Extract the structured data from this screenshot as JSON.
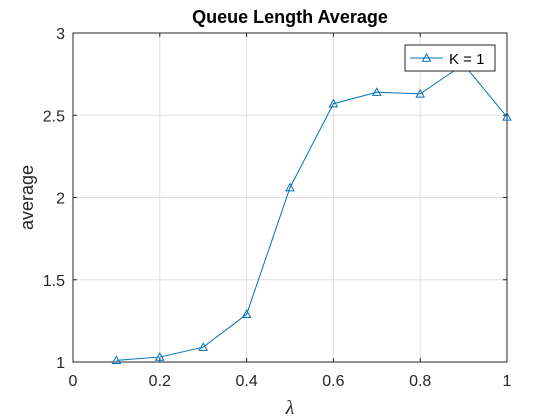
{
  "chart_data": {
    "type": "line",
    "title": "Queue Length Average",
    "xlabel": "λ",
    "ylabel": "average",
    "xlim": [
      0,
      1
    ],
    "ylim": [
      1,
      3
    ],
    "xticks": [
      0,
      0.2,
      0.4,
      0.6,
      0.8,
      1
    ],
    "xtick_labels": [
      "0",
      "0.2",
      "0.4",
      "0.6",
      "0.8",
      "1"
    ],
    "yticks": [
      1,
      1.5,
      2,
      2.5,
      3
    ],
    "ytick_labels": [
      "1",
      "1.5",
      "2",
      "2.5",
      "3"
    ],
    "grid": true,
    "legend_position": "top-right",
    "series": [
      {
        "name": "K = 1",
        "color": "#0072BD",
        "marker": "triangle",
        "x": [
          0.1,
          0.2,
          0.3,
          0.4,
          0.5,
          0.6,
          0.7,
          0.8,
          0.9,
          1.0
        ],
        "y": [
          1.01,
          1.03,
          1.09,
          1.29,
          2.06,
          2.57,
          2.64,
          2.63,
          2.81,
          2.49
        ]
      }
    ]
  }
}
